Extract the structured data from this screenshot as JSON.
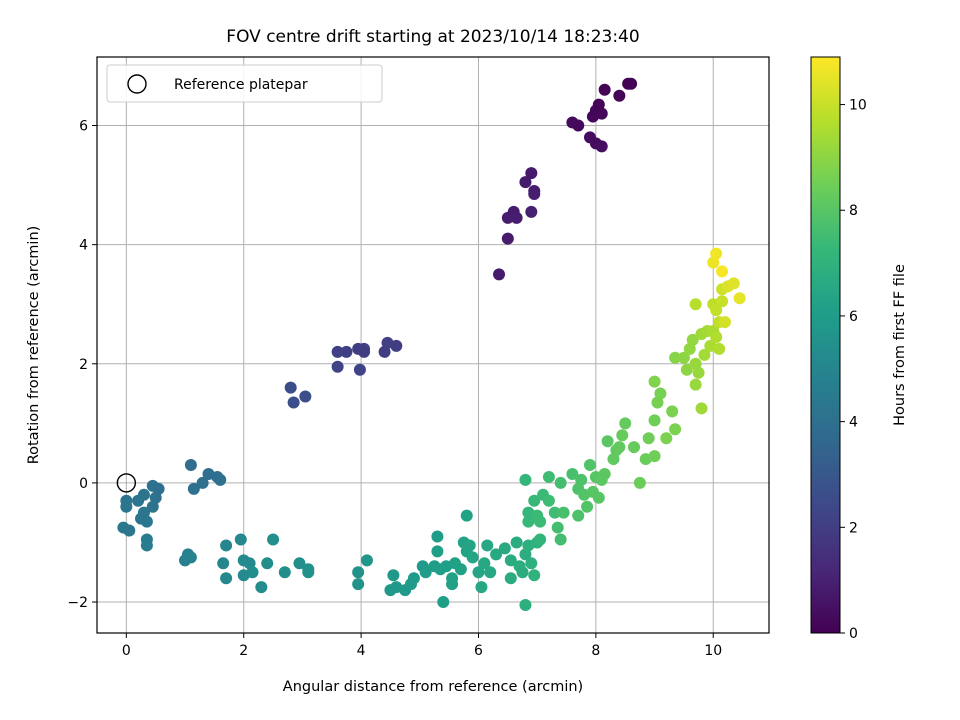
{
  "chart_data": {
    "type": "scatter",
    "title": "FOV centre drift starting at 2023/10/14 18:23:40",
    "xlabel": "Angular distance from reference (arcmin)",
    "ylabel": "Rotation from reference (arcmin)",
    "xlim": [
      -0.5,
      10.95
    ],
    "ylim": [
      -2.52,
      7.15
    ],
    "xticks": [
      0,
      2,
      4,
      6,
      8,
      10
    ],
    "yticks": [
      -2,
      0,
      2,
      4,
      6
    ],
    "grid": true,
    "legend": {
      "position": "top-left",
      "entries": [
        {
          "label": "Reference platepar",
          "marker": "hollow-circle"
        }
      ]
    },
    "reference_point": {
      "x": 0,
      "y": 0
    },
    "colorbar": {
      "label": "Hours from first FF file",
      "colormap": "viridis",
      "range": [
        0,
        10.9
      ],
      "ticks": [
        0,
        2,
        4,
        6,
        8,
        10
      ]
    },
    "colormap_stops": [
      "#440154",
      "#482878",
      "#3e4989",
      "#31688e",
      "#26828e",
      "#1f9e89",
      "#35b779",
      "#6ece58",
      "#b5de2b",
      "#fde725"
    ],
    "points": [
      {
        "x": 7.6,
        "y": 6.05,
        "c": 0.3
      },
      {
        "x": 7.7,
        "y": 6.0,
        "c": 0.25
      },
      {
        "x": 7.9,
        "y": 5.8,
        "c": 0.3
      },
      {
        "x": 8.0,
        "y": 5.7,
        "c": 0.35
      },
      {
        "x": 8.1,
        "y": 5.65,
        "c": 0.4
      },
      {
        "x": 7.95,
        "y": 6.15,
        "c": 0.2
      },
      {
        "x": 8.0,
        "y": 6.25,
        "c": 0.15
      },
      {
        "x": 8.05,
        "y": 6.35,
        "c": 0.1
      },
      {
        "x": 8.15,
        "y": 6.6,
        "c": 0.05
      },
      {
        "x": 8.4,
        "y": 6.5,
        "c": 0.1
      },
      {
        "x": 8.6,
        "y": 6.7,
        "c": 0.0
      },
      {
        "x": 8.55,
        "y": 6.7,
        "c": 0.05
      },
      {
        "x": 8.1,
        "y": 6.2,
        "c": 0.15
      },
      {
        "x": 6.35,
        "y": 3.5,
        "c": 0.8
      },
      {
        "x": 6.5,
        "y": 4.1,
        "c": 0.85
      },
      {
        "x": 6.5,
        "y": 4.45,
        "c": 0.9
      },
      {
        "x": 6.6,
        "y": 4.55,
        "c": 0.85
      },
      {
        "x": 6.65,
        "y": 4.45,
        "c": 0.9
      },
      {
        "x": 6.8,
        "y": 5.05,
        "c": 0.8
      },
      {
        "x": 6.9,
        "y": 5.2,
        "c": 0.75
      },
      {
        "x": 6.95,
        "y": 4.9,
        "c": 0.85
      },
      {
        "x": 6.95,
        "y": 4.85,
        "c": 0.9
      },
      {
        "x": 6.9,
        "y": 4.55,
        "c": 0.95
      },
      {
        "x": 3.6,
        "y": 2.2,
        "c": 2.1
      },
      {
        "x": 3.75,
        "y": 2.2,
        "c": 2.1
      },
      {
        "x": 3.6,
        "y": 1.95,
        "c": 2.2
      },
      {
        "x": 3.95,
        "y": 2.25,
        "c": 2.0
      },
      {
        "x": 4.05,
        "y": 2.25,
        "c": 2.1
      },
      {
        "x": 4.05,
        "y": 2.2,
        "c": 2.0
      },
      {
        "x": 3.98,
        "y": 1.9,
        "c": 2.2
      },
      {
        "x": 4.4,
        "y": 2.2,
        "c": 2.0
      },
      {
        "x": 4.45,
        "y": 2.35,
        "c": 2.1
      },
      {
        "x": 4.6,
        "y": 2.3,
        "c": 2.0
      },
      {
        "x": 2.8,
        "y": 1.6,
        "c": 2.6
      },
      {
        "x": 2.85,
        "y": 1.35,
        "c": 2.7
      },
      {
        "x": 3.05,
        "y": 1.45,
        "c": 2.6
      },
      {
        "x": 0.0,
        "y": -0.3,
        "c": 4.2
      },
      {
        "x": 0.0,
        "y": -0.4,
        "c": 4.3
      },
      {
        "x": -0.05,
        "y": -0.75,
        "c": 4.4
      },
      {
        "x": 0.05,
        "y": -0.8,
        "c": 4.3
      },
      {
        "x": 0.2,
        "y": -0.3,
        "c": 4.3
      },
      {
        "x": 0.3,
        "y": -0.2,
        "c": 4.2
      },
      {
        "x": 0.3,
        "y": -0.5,
        "c": 4.3
      },
      {
        "x": 0.35,
        "y": -0.65,
        "c": 4.4
      },
      {
        "x": 0.35,
        "y": -0.95,
        "c": 4.5
      },
      {
        "x": 0.35,
        "y": -1.05,
        "c": 4.5
      },
      {
        "x": 0.45,
        "y": -0.05,
        "c": 4.1
      },
      {
        "x": 0.55,
        "y": -0.1,
        "c": 4.0
      },
      {
        "x": 0.5,
        "y": -0.25,
        "c": 4.1
      },
      {
        "x": 0.45,
        "y": -0.4,
        "c": 4.2
      },
      {
        "x": 0.25,
        "y": -0.6,
        "c": 4.3
      },
      {
        "x": 1.1,
        "y": 0.3,
        "c": 3.9
      },
      {
        "x": 1.15,
        "y": -0.1,
        "c": 4.0
      },
      {
        "x": 1.3,
        "y": 0.0,
        "c": 4.0
      },
      {
        "x": 1.4,
        "y": 0.15,
        "c": 3.9
      },
      {
        "x": 1.55,
        "y": 0.1,
        "c": 3.9
      },
      {
        "x": 1.6,
        "y": 0.05,
        "c": 4.0
      },
      {
        "x": 1.0,
        "y": -1.3,
        "c": 4.8
      },
      {
        "x": 1.05,
        "y": -1.2,
        "c": 4.8
      },
      {
        "x": 1.1,
        "y": -1.25,
        "c": 4.9
      },
      {
        "x": 1.7,
        "y": -1.05,
        "c": 5.0
      },
      {
        "x": 1.65,
        "y": -1.35,
        "c": 5.0
      },
      {
        "x": 1.7,
        "y": -1.6,
        "c": 5.1
      },
      {
        "x": 1.95,
        "y": -0.95,
        "c": 5.1
      },
      {
        "x": 2.0,
        "y": -1.3,
        "c": 5.2
      },
      {
        "x": 2.1,
        "y": -1.35,
        "c": 5.2
      },
      {
        "x": 2.0,
        "y": -1.55,
        "c": 5.2
      },
      {
        "x": 2.15,
        "y": -1.5,
        "c": 5.3
      },
      {
        "x": 2.3,
        "y": -1.75,
        "c": 5.3
      },
      {
        "x": 2.4,
        "y": -1.35,
        "c": 5.3
      },
      {
        "x": 2.5,
        "y": -0.95,
        "c": 5.4
      },
      {
        "x": 2.7,
        "y": -1.5,
        "c": 5.4
      },
      {
        "x": 2.95,
        "y": -1.35,
        "c": 5.4
      },
      {
        "x": 3.1,
        "y": -1.45,
        "c": 5.5
      },
      {
        "x": 3.1,
        "y": -1.5,
        "c": 5.5
      },
      {
        "x": 3.95,
        "y": -1.5,
        "c": 5.6
      },
      {
        "x": 3.95,
        "y": -1.7,
        "c": 5.6
      },
      {
        "x": 4.1,
        "y": -1.3,
        "c": 5.7
      },
      {
        "x": 4.5,
        "y": -1.8,
        "c": 5.8
      },
      {
        "x": 4.55,
        "y": -1.55,
        "c": 5.8
      },
      {
        "x": 4.6,
        "y": -1.75,
        "c": 5.8
      },
      {
        "x": 4.75,
        "y": -1.8,
        "c": 5.9
      },
      {
        "x": 4.85,
        "y": -1.7,
        "c": 5.9
      },
      {
        "x": 4.9,
        "y": -1.6,
        "c": 5.9
      },
      {
        "x": 5.05,
        "y": -1.4,
        "c": 5.9
      },
      {
        "x": 5.1,
        "y": -1.5,
        "c": 6.0
      },
      {
        "x": 5.25,
        "y": -1.4,
        "c": 6.0
      },
      {
        "x": 5.3,
        "y": -0.9,
        "c": 6.0
      },
      {
        "x": 5.3,
        "y": -1.15,
        "c": 6.1
      },
      {
        "x": 5.35,
        "y": -1.45,
        "c": 6.1
      },
      {
        "x": 5.4,
        "y": -2.0,
        "c": 6.1
      },
      {
        "x": 5.45,
        "y": -1.4,
        "c": 6.1
      },
      {
        "x": 5.55,
        "y": -1.6,
        "c": 6.2
      },
      {
        "x": 5.55,
        "y": -1.7,
        "c": 6.2
      },
      {
        "x": 5.6,
        "y": -1.35,
        "c": 6.2
      },
      {
        "x": 5.7,
        "y": -1.45,
        "c": 6.2
      },
      {
        "x": 5.75,
        "y": -1.0,
        "c": 6.3
      },
      {
        "x": 5.8,
        "y": -0.55,
        "c": 6.3
      },
      {
        "x": 5.8,
        "y": -1.15,
        "c": 6.3
      },
      {
        "x": 5.85,
        "y": -1.05,
        "c": 6.4
      },
      {
        "x": 5.9,
        "y": -1.25,
        "c": 6.4
      },
      {
        "x": 6.0,
        "y": -1.5,
        "c": 6.4
      },
      {
        "x": 6.05,
        "y": -1.75,
        "c": 6.5
      },
      {
        "x": 6.1,
        "y": -1.35,
        "c": 6.5
      },
      {
        "x": 6.15,
        "y": -1.05,
        "c": 6.5
      },
      {
        "x": 6.2,
        "y": -1.5,
        "c": 6.5
      },
      {
        "x": 6.3,
        "y": -1.2,
        "c": 6.6
      },
      {
        "x": 6.45,
        "y": -1.1,
        "c": 6.6
      },
      {
        "x": 6.55,
        "y": -1.3,
        "c": 6.7
      },
      {
        "x": 6.55,
        "y": -1.6,
        "c": 6.7
      },
      {
        "x": 6.65,
        "y": -1.0,
        "c": 6.7
      },
      {
        "x": 6.7,
        "y": -1.4,
        "c": 6.8
      },
      {
        "x": 6.75,
        "y": -1.5,
        "c": 6.8
      },
      {
        "x": 6.8,
        "y": -1.2,
        "c": 6.8
      },
      {
        "x": 6.8,
        "y": -2.05,
        "c": 6.9
      },
      {
        "x": 6.85,
        "y": -1.05,
        "c": 6.9
      },
      {
        "x": 6.9,
        "y": -1.35,
        "c": 6.9
      },
      {
        "x": 6.95,
        "y": -1.55,
        "c": 7.0
      },
      {
        "x": 7.0,
        "y": -1.0,
        "c": 7.0
      },
      {
        "x": 7.05,
        "y": -0.95,
        "c": 7.1
      },
      {
        "x": 6.8,
        "y": 0.05,
        "c": 7.2
      },
      {
        "x": 6.85,
        "y": -0.5,
        "c": 7.2
      },
      {
        "x": 6.85,
        "y": -0.65,
        "c": 7.3
      },
      {
        "x": 6.95,
        "y": -0.3,
        "c": 7.3
      },
      {
        "x": 7.0,
        "y": -0.55,
        "c": 7.4
      },
      {
        "x": 7.05,
        "y": -0.65,
        "c": 7.4
      },
      {
        "x": 7.1,
        "y": -0.2,
        "c": 7.4
      },
      {
        "x": 7.2,
        "y": 0.1,
        "c": 7.5
      },
      {
        "x": 7.2,
        "y": -0.3,
        "c": 7.5
      },
      {
        "x": 7.3,
        "y": -0.5,
        "c": 7.5
      },
      {
        "x": 7.35,
        "y": -0.75,
        "c": 7.6
      },
      {
        "x": 7.4,
        "y": -0.95,
        "c": 7.6
      },
      {
        "x": 7.4,
        "y": 0.0,
        "c": 7.6
      },
      {
        "x": 7.45,
        "y": -0.5,
        "c": 7.7
      },
      {
        "x": 7.6,
        "y": 0.15,
        "c": 7.7
      },
      {
        "x": 7.7,
        "y": -0.1,
        "c": 7.8
      },
      {
        "x": 7.7,
        "y": -0.55,
        "c": 7.8
      },
      {
        "x": 7.75,
        "y": 0.05,
        "c": 7.8
      },
      {
        "x": 7.8,
        "y": -0.2,
        "c": 7.9
      },
      {
        "x": 7.85,
        "y": -0.4,
        "c": 7.9
      },
      {
        "x": 7.9,
        "y": 0.3,
        "c": 7.9
      },
      {
        "x": 7.95,
        "y": -0.15,
        "c": 8.0
      },
      {
        "x": 8.0,
        "y": 0.1,
        "c": 8.0
      },
      {
        "x": 8.05,
        "y": -0.25,
        "c": 8.0
      },
      {
        "x": 8.1,
        "y": 0.05,
        "c": 8.1
      },
      {
        "x": 8.15,
        "y": 0.15,
        "c": 8.1
      },
      {
        "x": 8.2,
        "y": 0.7,
        "c": 8.1
      },
      {
        "x": 8.3,
        "y": 0.4,
        "c": 8.2
      },
      {
        "x": 8.35,
        "y": 0.55,
        "c": 8.2
      },
      {
        "x": 8.4,
        "y": 0.6,
        "c": 8.2
      },
      {
        "x": 8.45,
        "y": 0.8,
        "c": 8.3
      },
      {
        "x": 8.5,
        "y": 1.0,
        "c": 8.3
      },
      {
        "x": 8.65,
        "y": 0.6,
        "c": 8.3
      },
      {
        "x": 8.75,
        "y": 0.0,
        "c": 8.4
      },
      {
        "x": 8.85,
        "y": 0.4,
        "c": 8.4
      },
      {
        "x": 8.9,
        "y": 0.75,
        "c": 8.5
      },
      {
        "x": 9.0,
        "y": 0.45,
        "c": 8.5
      },
      {
        "x": 9.0,
        "y": 1.05,
        "c": 8.5
      },
      {
        "x": 9.05,
        "y": 1.35,
        "c": 8.6
      },
      {
        "x": 9.1,
        "y": 1.5,
        "c": 8.6
      },
      {
        "x": 9.2,
        "y": 0.75,
        "c": 8.7
      },
      {
        "x": 9.3,
        "y": 1.2,
        "c": 8.7
      },
      {
        "x": 9.35,
        "y": 0.9,
        "c": 8.7
      },
      {
        "x": 9.0,
        "y": 1.7,
        "c": 8.8
      },
      {
        "x": 9.35,
        "y": 2.1,
        "c": 8.9
      },
      {
        "x": 9.5,
        "y": 2.1,
        "c": 9.0
      },
      {
        "x": 9.55,
        "y": 1.9,
        "c": 9.0
      },
      {
        "x": 9.6,
        "y": 2.25,
        "c": 9.1
      },
      {
        "x": 9.65,
        "y": 2.4,
        "c": 9.1
      },
      {
        "x": 9.7,
        "y": 2.0,
        "c": 9.2
      },
      {
        "x": 9.7,
        "y": 1.65,
        "c": 9.2
      },
      {
        "x": 9.75,
        "y": 1.85,
        "c": 9.2
      },
      {
        "x": 9.8,
        "y": 1.25,
        "c": 9.3
      },
      {
        "x": 9.8,
        "y": 2.5,
        "c": 9.3
      },
      {
        "x": 9.85,
        "y": 2.15,
        "c": 9.4
      },
      {
        "x": 9.9,
        "y": 2.55,
        "c": 9.4
      },
      {
        "x": 9.95,
        "y": 2.3,
        "c": 9.5
      },
      {
        "x": 10.0,
        "y": 2.55,
        "c": 9.5
      },
      {
        "x": 10.05,
        "y": 2.45,
        "c": 9.6
      },
      {
        "x": 10.1,
        "y": 2.25,
        "c": 9.6
      },
      {
        "x": 9.7,
        "y": 3.0,
        "c": 9.7
      },
      {
        "x": 10.0,
        "y": 3.0,
        "c": 9.8
      },
      {
        "x": 10.05,
        "y": 2.9,
        "c": 9.9
      },
      {
        "x": 10.1,
        "y": 2.7,
        "c": 9.9
      },
      {
        "x": 10.15,
        "y": 3.05,
        "c": 10.0
      },
      {
        "x": 10.15,
        "y": 3.25,
        "c": 10.1
      },
      {
        "x": 10.2,
        "y": 2.7,
        "c": 10.2
      },
      {
        "x": 10.25,
        "y": 3.3,
        "c": 10.3
      },
      {
        "x": 10.35,
        "y": 3.35,
        "c": 10.4
      },
      {
        "x": 10.45,
        "y": 3.1,
        "c": 10.5
      },
      {
        "x": 10.0,
        "y": 3.7,
        "c": 10.6
      },
      {
        "x": 10.05,
        "y": 3.85,
        "c": 10.7
      },
      {
        "x": 10.15,
        "y": 3.55,
        "c": 10.8
      }
    ]
  }
}
